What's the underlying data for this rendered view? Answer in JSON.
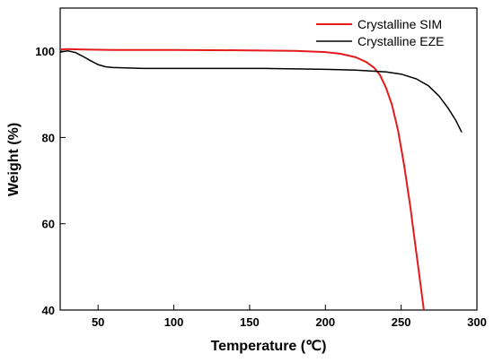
{
  "chart_data": {
    "type": "line",
    "xlabel": "Temperature (℃)",
    "ylabel": "Weight (%)",
    "xlim": [
      25,
      300
    ],
    "ylim": [
      40,
      110
    ],
    "x_ticks": [
      50,
      100,
      150,
      200,
      250,
      300
    ],
    "y_ticks": [
      40,
      60,
      80,
      100
    ],
    "legend_position": "top-right",
    "grid": false,
    "series": [
      {
        "name": "Crystalline SIM",
        "color": "#e41a1c",
        "points": [
          [
            25,
            100.4
          ],
          [
            30,
            100.5
          ],
          [
            40,
            100.4
          ],
          [
            60,
            100.3
          ],
          [
            100,
            100.3
          ],
          [
            150,
            100.2
          ],
          [
            180,
            100.1
          ],
          [
            200,
            99.8
          ],
          [
            210,
            99.4
          ],
          [
            220,
            98.6
          ],
          [
            227,
            97.5
          ],
          [
            232,
            96.2
          ],
          [
            236,
            94.5
          ],
          [
            240,
            91.5
          ],
          [
            244,
            87.5
          ],
          [
            248,
            81.5
          ],
          [
            252,
            73.5
          ],
          [
            256,
            64
          ],
          [
            259,
            56
          ],
          [
            262,
            48
          ],
          [
            265,
            40
          ]
        ]
      },
      {
        "name": "Crystalline EZE",
        "color": "#000000",
        "points": [
          [
            25,
            99.8
          ],
          [
            30,
            100.1
          ],
          [
            35,
            99.7
          ],
          [
            40,
            98.8
          ],
          [
            45,
            97.8
          ],
          [
            50,
            96.9
          ],
          [
            55,
            96.4
          ],
          [
            60,
            96.2
          ],
          [
            80,
            96.0
          ],
          [
            120,
            96.0
          ],
          [
            160,
            96.0
          ],
          [
            200,
            95.8
          ],
          [
            220,
            95.6
          ],
          [
            240,
            95.2
          ],
          [
            250,
            94.7
          ],
          [
            260,
            93.6
          ],
          [
            268,
            92.0
          ],
          [
            275,
            89.6
          ],
          [
            281,
            86.8
          ],
          [
            286,
            84.0
          ],
          [
            290,
            81.2
          ]
        ]
      }
    ]
  }
}
